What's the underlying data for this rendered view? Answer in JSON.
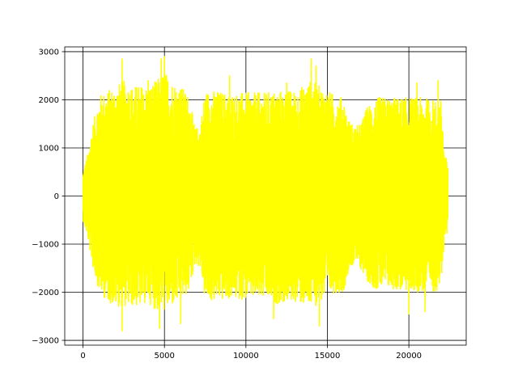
{
  "chart_data": {
    "type": "line",
    "title": "",
    "xlabel": "",
    "ylabel": "",
    "xlim": [
      -1120,
      23520
    ],
    "ylim": [
      -3100,
      3100
    ],
    "xticks": [
      0,
      5000,
      10000,
      15000,
      20000
    ],
    "yticks": [
      -3000,
      -2000,
      -1000,
      0,
      1000,
      2000,
      3000
    ],
    "xtick_labels": [
      "0",
      "5000",
      "10000",
      "15000",
      "20000"
    ],
    "ytick_labels": [
      "−3000",
      "−2000",
      "−1000",
      "0",
      "1000",
      "2000",
      "3000"
    ],
    "grid": true,
    "legend": "none",
    "series": [
      {
        "color": "#ffff00",
        "x_range": [
          0,
          22400
        ],
        "n_points": 22400,
        "envelope": {
          "x": [
            0,
            300,
            600,
            1000,
            1500,
            2000,
            2500,
            3000,
            3500,
            4000,
            4500,
            5000,
            5500,
            6000,
            6500,
            6900,
            7200,
            7500,
            8000,
            9000,
            10000,
            11000,
            12000,
            13000,
            14000,
            15000,
            15500,
            16000,
            16300,
            16700,
            17000,
            17500,
            18000,
            19000,
            20000,
            21000,
            21500,
            22000,
            22200,
            22400
          ],
          "upper": [
            500,
            900,
            1500,
            2100,
            2200,
            2300,
            2400,
            2300,
            2300,
            2300,
            2400,
            2600,
            2400,
            2300,
            2100,
            1400,
            1500,
            2200,
            2200,
            2150,
            2150,
            2150,
            2200,
            2200,
            2400,
            2200,
            2100,
            2050,
            1600,
            1450,
            1500,
            1900,
            2050,
            2050,
            2050,
            2050,
            2000,
            2000,
            800,
            800
          ],
          "lower": [
            -500,
            -900,
            -1500,
            -2000,
            -2200,
            -2300,
            -2300,
            -2300,
            -2300,
            -2200,
            -2400,
            -2400,
            -2300,
            -2200,
            -2000,
            -1400,
            -1500,
            -2200,
            -2200,
            -2150,
            -2150,
            -2150,
            -2250,
            -2200,
            -2350,
            -2100,
            -2000,
            -2000,
            -1550,
            -1400,
            -1500,
            -1800,
            -1950,
            -1950,
            -2000,
            -2000,
            -2000,
            -1900,
            -800,
            -800
          ]
        },
        "peaks": [
          [
            2400,
            2850
          ],
          [
            4000,
            2400
          ],
          [
            4800,
            2850
          ],
          [
            5000,
            2900
          ],
          [
            9000,
            2500
          ],
          [
            12500,
            2350
          ],
          [
            14000,
            2850
          ],
          [
            14300,
            2700
          ],
          [
            20500,
            2350
          ],
          [
            21800,
            2400
          ],
          [
            2400,
            -2800
          ],
          [
            4700,
            -2750
          ],
          [
            6000,
            -2650
          ],
          [
            11700,
            -2550
          ],
          [
            14500,
            -2700
          ],
          [
            20000,
            -2450
          ],
          [
            21000,
            -2400
          ]
        ]
      }
    ]
  }
}
